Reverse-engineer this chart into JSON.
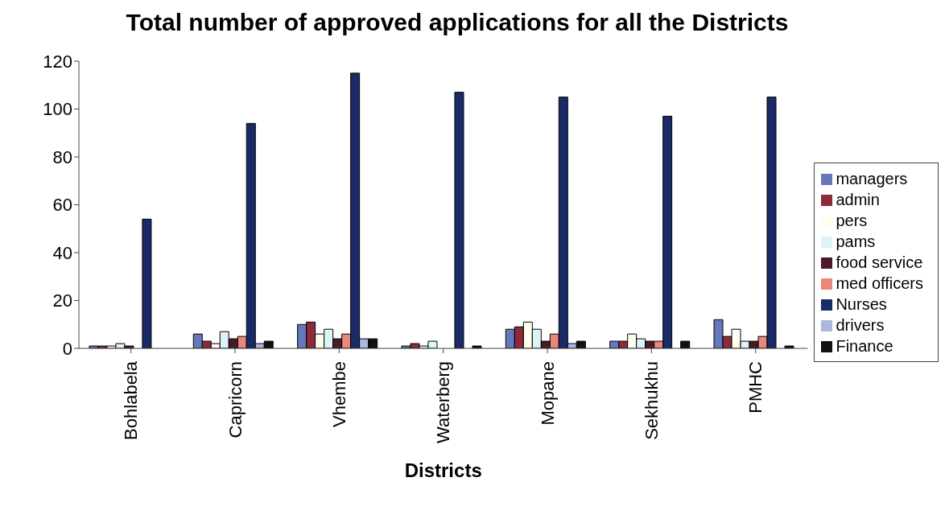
{
  "chart_data": {
    "type": "bar",
    "title": "Total number of approved applications for all the Districts",
    "xlabel": "Districts",
    "categories": [
      "Bohlabela",
      "Capricorn",
      "Vhembe",
      "Waterberg",
      "Mopane",
      "Sekhukhu",
      "PMHC"
    ],
    "series": [
      {
        "name": "managers",
        "color": "#6677bb",
        "values": [
          1,
          6,
          10,
          1,
          8,
          3,
          12
        ]
      },
      {
        "name": "admin",
        "color": "#8b2a3a",
        "values": [
          1,
          3,
          11,
          2,
          9,
          3,
          5
        ]
      },
      {
        "name": "pers",
        "color": "#ffffee",
        "values": [
          1,
          2,
          6,
          1,
          11,
          6,
          8
        ]
      },
      {
        "name": "pams",
        "color": "#ddf3f8",
        "values": [
          2,
          7,
          8,
          3,
          8,
          4,
          3
        ]
      },
      {
        "name": "food service",
        "color": "#4a1a2a",
        "values": [
          1,
          4,
          4,
          0,
          3,
          3,
          3
        ]
      },
      {
        "name": "med officers",
        "color": "#e8877a",
        "values": [
          0,
          5,
          6,
          0,
          6,
          3,
          5
        ]
      },
      {
        "name": "Nurses",
        "color": "#1a2a66",
        "values": [
          54,
          94,
          115,
          107,
          105,
          97,
          105
        ]
      },
      {
        "name": "drivers",
        "color": "#aab8e0",
        "values": [
          0,
          2,
          4,
          0,
          2,
          0,
          0
        ]
      },
      {
        "name": "Finance",
        "color": "#111111",
        "values": [
          0,
          3,
          4,
          1,
          3,
          3,
          1
        ]
      }
    ],
    "ylim": [
      0,
      120
    ],
    "yticks": [
      0,
      20,
      40,
      60,
      80,
      100,
      120
    ],
    "grid": false,
    "legend": "right"
  }
}
